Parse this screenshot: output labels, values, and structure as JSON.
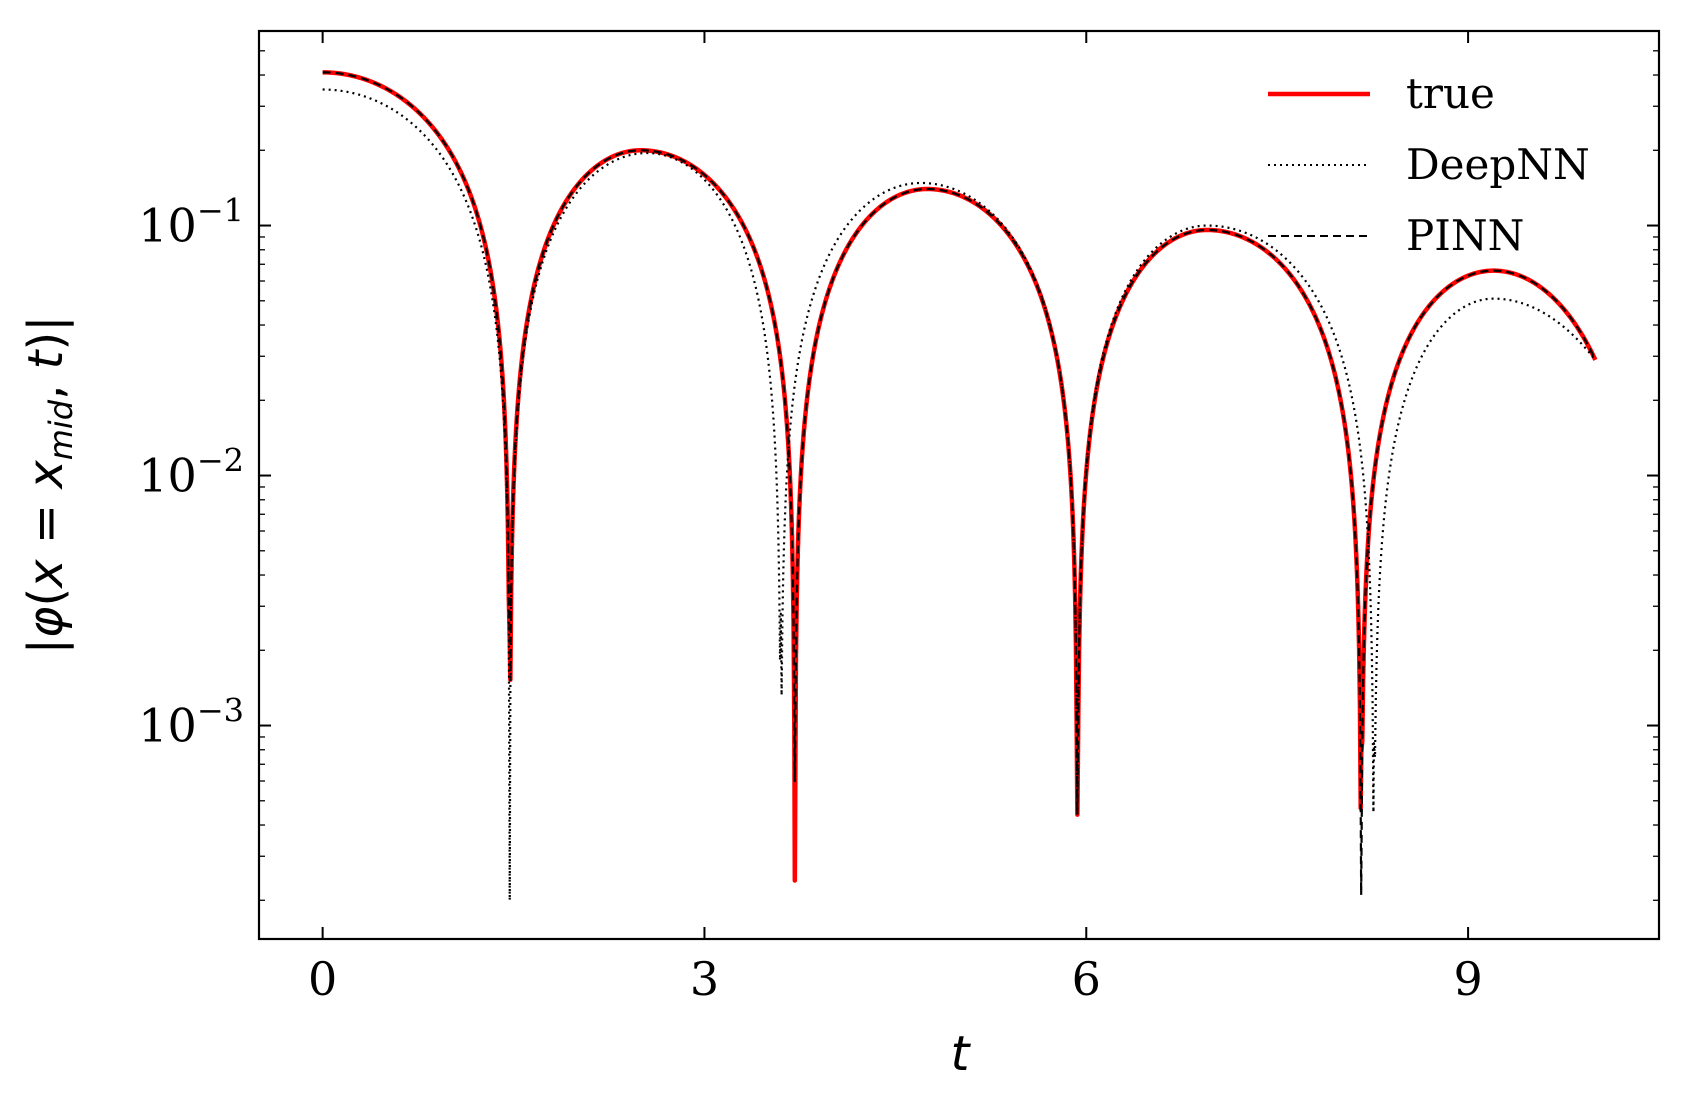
{
  "chart_data": {
    "type": "line",
    "title": "",
    "xlabel": "t",
    "ylabel": "|φ(x = x_mid, t)|",
    "ylabel_parts": {
      "open": "|",
      "phi": "φ",
      "paren_open": "(",
      "x": "x",
      "equals": " = ",
      "x_mid": "x",
      "sub": "mid",
      "comma": ", ",
      "t": "t",
      "close": ")|"
    },
    "xlim": [
      -0.5,
      10.5
    ],
    "ylim": [
      0.00014,
      0.6
    ],
    "yscale": "log",
    "grid": false,
    "legend_position": "top-right",
    "x_ticks": [
      {
        "value": 0,
        "label": "0"
      },
      {
        "value": 3,
        "label": "3"
      },
      {
        "value": 6,
        "label": "6"
      },
      {
        "value": 9,
        "label": "9"
      }
    ],
    "y_ticks": [
      {
        "value": 0.1,
        "base": "10",
        "exp": "−1"
      },
      {
        "value": 0.01,
        "base": "10",
        "exp": "−2"
      },
      {
        "value": 0.001,
        "base": "10",
        "exp": "−3"
      }
    ],
    "series": [
      {
        "name": "true",
        "color": "#ff0000",
        "style": "solid",
        "zeros": [
          1.47,
          3.71,
          5.93,
          8.16
        ],
        "floors": [
          0.0022,
          0.00024,
          0.00044,
          0.00078
        ],
        "peaks": [
          [
            0,
            0.41
          ],
          [
            2.5,
            0.2
          ],
          [
            4.75,
            0.14
          ],
          [
            6.95,
            0.096
          ],
          [
            9.2,
            0.066
          ],
          [
            10,
            0.029
          ]
        ]
      },
      {
        "name": "DeepNN",
        "color": "#000000",
        "style": "dotted",
        "zeros": [
          1.47,
          3.6,
          5.93,
          8.26
        ],
        "floors": [
          0.0002,
          0.0028,
          0.00044,
          0.00085
        ],
        "peaks": [
          [
            0,
            0.35
          ],
          [
            2.55,
            0.195
          ],
          [
            4.7,
            0.148
          ],
          [
            6.95,
            0.1
          ],
          [
            9.2,
            0.051
          ],
          [
            10,
            0.029
          ]
        ]
      },
      {
        "name": "PINN",
        "color": "#000000",
        "style": "dashed",
        "zeros": [
          1.47,
          3.71,
          5.93,
          8.16
        ],
        "floors": [
          0.0022,
          0.0006,
          0.00044,
          0.00021
        ],
        "peaks": [
          [
            0,
            0.41
          ],
          [
            2.5,
            0.2
          ],
          [
            4.75,
            0.14
          ],
          [
            6.95,
            0.096
          ],
          [
            9.2,
            0.066
          ],
          [
            10,
            0.029
          ]
        ]
      }
    ]
  }
}
